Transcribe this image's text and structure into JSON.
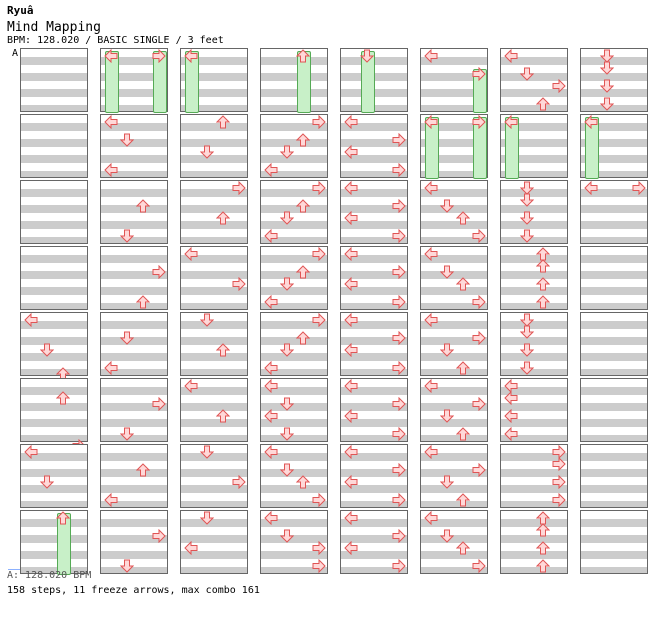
{
  "header": {
    "artist": "Ryuâ",
    "title": "Mind Mapping",
    "meta": "BPM: 128.020 / BASIC SINGLE / 3 feet",
    "marker": "A"
  },
  "footer": {
    "bpm": "A: 128.020 BPM",
    "stats": "158 steps, 11 freeze arrows, max combo 161"
  },
  "colors": {
    "arrow_fill": "#ffd8d8",
    "arrow_stroke": "#e05555",
    "freeze_fill": "#c8f0c8",
    "freeze_stroke": "#55aa55",
    "stripe": "#cccccc"
  },
  "chart": {
    "columns": [
      {
        "measures": [
          {
            "notes": []
          },
          {
            "notes": []
          },
          {
            "notes": []
          },
          {
            "notes": []
          },
          {
            "notes": [
              {
                "dir": "L",
                "row": 0
              },
              {
                "dir": "D",
                "row": 5
              },
              {
                "dir": "U",
                "row": 9
              },
              {
                "dir": "R",
                "row": 12
              }
            ]
          },
          {
            "notes": [
              {
                "dir": "U",
                "row": 2
              },
              {
                "dir": "R",
                "row": 10
              }
            ]
          },
          {
            "notes": [
              {
                "dir": "L",
                "row": 0
              },
              {
                "dir": "D",
                "row": 5
              }
            ]
          },
          {
            "notes": [
              {
                "dir": "U",
                "row": 0,
                "freeze": true
              }
            ]
          }
        ]
      },
      {
        "measures": [
          {
            "notes": [
              {
                "dir": "L",
                "row": 0,
                "freeze": true
              },
              {
                "dir": "R",
                "row": 0,
                "freeze": true
              }
            ]
          },
          {
            "notes": [
              {
                "dir": "L",
                "row": 0
              },
              {
                "dir": "D",
                "row": 3
              },
              {
                "dir": "L",
                "row": 8
              }
            ]
          },
          {
            "notes": [
              {
                "dir": "U",
                "row": 3
              },
              {
                "dir": "D",
                "row": 8
              }
            ]
          },
          {
            "notes": [
              {
                "dir": "R",
                "row": 3
              },
              {
                "dir": "U",
                "row": 8
              }
            ]
          },
          {
            "notes": [
              {
                "dir": "D",
                "row": 3
              },
              {
                "dir": "L",
                "row": 8
              }
            ]
          },
          {
            "notes": [
              {
                "dir": "R",
                "row": 3
              },
              {
                "dir": "D",
                "row": 8
              }
            ]
          },
          {
            "notes": [
              {
                "dir": "U",
                "row": 3
              },
              {
                "dir": "L",
                "row": 8
              }
            ]
          },
          {
            "notes": [
              {
                "dir": "R",
                "row": 3
              },
              {
                "dir": "D",
                "row": 8
              }
            ]
          }
        ]
      },
      {
        "measures": [
          {
            "notes": [
              {
                "dir": "L",
                "row": 0,
                "freeze": true
              }
            ]
          },
          {
            "notes": [
              {
                "dir": "U",
                "row": 0
              },
              {
                "dir": "D",
                "row": 5
              }
            ]
          },
          {
            "notes": [
              {
                "dir": "R",
                "row": 0
              },
              {
                "dir": "U",
                "row": 5
              }
            ]
          },
          {
            "notes": [
              {
                "dir": "L",
                "row": 0
              },
              {
                "dir": "R",
                "row": 5
              }
            ]
          },
          {
            "notes": [
              {
                "dir": "D",
                "row": 0
              },
              {
                "dir": "U",
                "row": 5
              }
            ]
          },
          {
            "notes": [
              {
                "dir": "L",
                "row": 0
              },
              {
                "dir": "U",
                "row": 5
              }
            ]
          },
          {
            "notes": [
              {
                "dir": "D",
                "row": 0
              },
              {
                "dir": "R",
                "row": 5
              }
            ]
          },
          {
            "notes": [
              {
                "dir": "D",
                "row": 0
              },
              {
                "dir": "L",
                "row": 5
              }
            ]
          }
        ]
      },
      {
        "measures": [
          {
            "notes": [
              {
                "dir": "U",
                "row": 0,
                "freeze": true
              }
            ]
          },
          {
            "notes": [
              {
                "dir": "R",
                "row": 0
              },
              {
                "dir": "U",
                "row": 3
              },
              {
                "dir": "D",
                "row": 5
              },
              {
                "dir": "L",
                "row": 8
              }
            ]
          },
          {
            "notes": [
              {
                "dir": "R",
                "row": 0
              },
              {
                "dir": "U",
                "row": 3
              },
              {
                "dir": "D",
                "row": 5
              },
              {
                "dir": "L",
                "row": 8
              }
            ]
          },
          {
            "notes": [
              {
                "dir": "R",
                "row": 0
              },
              {
                "dir": "U",
                "row": 3
              },
              {
                "dir": "D",
                "row": 5
              },
              {
                "dir": "L",
                "row": 8
              }
            ]
          },
          {
            "notes": [
              {
                "dir": "R",
                "row": 0
              },
              {
                "dir": "U",
                "row": 3
              },
              {
                "dir": "D",
                "row": 5
              },
              {
                "dir": "L",
                "row": 8
              }
            ]
          },
          {
            "notes": [
              {
                "dir": "L",
                "row": 0
              },
              {
                "dir": "D",
                "row": 3
              },
              {
                "dir": "L",
                "row": 5
              },
              {
                "dir": "D",
                "row": 8
              }
            ]
          },
          {
            "notes": [
              {
                "dir": "L",
                "row": 0
              },
              {
                "dir": "D",
                "row": 3
              },
              {
                "dir": "U",
                "row": 5
              },
              {
                "dir": "R",
                "row": 8
              }
            ]
          },
          {
            "notes": [
              {
                "dir": "L",
                "row": 0
              },
              {
                "dir": "D",
                "row": 3
              },
              {
                "dir": "R",
                "row": 5
              },
              {
                "dir": "R",
                "row": 8
              }
            ]
          }
        ]
      },
      {
        "measures": [
          {
            "notes": [
              {
                "dir": "D",
                "row": 0,
                "freeze": true
              }
            ]
          },
          {
            "notes": [
              {
                "dir": "L",
                "row": 0
              },
              {
                "dir": "R",
                "row": 3
              },
              {
                "dir": "L",
                "row": 5
              },
              {
                "dir": "R",
                "row": 8
              }
            ]
          },
          {
            "notes": [
              {
                "dir": "L",
                "row": 0
              },
              {
                "dir": "R",
                "row": 3
              },
              {
                "dir": "L",
                "row": 5
              },
              {
                "dir": "R",
                "row": 8
              }
            ]
          },
          {
            "notes": [
              {
                "dir": "L",
                "row": 0
              },
              {
                "dir": "R",
                "row": 3
              },
              {
                "dir": "L",
                "row": 5
              },
              {
                "dir": "R",
                "row": 8
              }
            ]
          },
          {
            "notes": [
              {
                "dir": "L",
                "row": 0
              },
              {
                "dir": "R",
                "row": 3
              },
              {
                "dir": "L",
                "row": 5
              },
              {
                "dir": "R",
                "row": 8
              }
            ]
          },
          {
            "notes": [
              {
                "dir": "L",
                "row": 0
              },
              {
                "dir": "R",
                "row": 3
              },
              {
                "dir": "L",
                "row": 5
              },
              {
                "dir": "R",
                "row": 8
              }
            ]
          },
          {
            "notes": [
              {
                "dir": "L",
                "row": 0
              },
              {
                "dir": "R",
                "row": 3
              },
              {
                "dir": "L",
                "row": 5
              },
              {
                "dir": "R",
                "row": 8
              }
            ]
          },
          {
            "notes": [
              {
                "dir": "L",
                "row": 0
              },
              {
                "dir": "R",
                "row": 3
              },
              {
                "dir": "L",
                "row": 5
              },
              {
                "dir": "R",
                "row": 8
              }
            ]
          }
        ]
      },
      {
        "measures": [
          {
            "notes": [
              {
                "dir": "L",
                "row": 0
              },
              {
                "dir": "R",
                "row": 3,
                "freeze": true
              }
            ]
          },
          {
            "notes": [
              {
                "dir": "L",
                "row": 0,
                "freeze": true
              },
              {
                "dir": "R",
                "row": 0,
                "freeze": true
              }
            ]
          },
          {
            "notes": [
              {
                "dir": "L",
                "row": 0
              },
              {
                "dir": "D",
                "row": 3
              },
              {
                "dir": "U",
                "row": 5
              },
              {
                "dir": "R",
                "row": 8
              }
            ]
          },
          {
            "notes": [
              {
                "dir": "L",
                "row": 0
              },
              {
                "dir": "D",
                "row": 3
              },
              {
                "dir": "U",
                "row": 5
              },
              {
                "dir": "R",
                "row": 8
              }
            ]
          },
          {
            "notes": [
              {
                "dir": "L",
                "row": 0
              },
              {
                "dir": "R",
                "row": 3
              },
              {
                "dir": "D",
                "row": 5
              },
              {
                "dir": "U",
                "row": 8
              }
            ]
          },
          {
            "notes": [
              {
                "dir": "L",
                "row": 0
              },
              {
                "dir": "R",
                "row": 3
              },
              {
                "dir": "D",
                "row": 5
              },
              {
                "dir": "U",
                "row": 8
              }
            ]
          },
          {
            "notes": [
              {
                "dir": "L",
                "row": 0
              },
              {
                "dir": "R",
                "row": 3
              },
              {
                "dir": "D",
                "row": 5
              },
              {
                "dir": "U",
                "row": 8
              }
            ]
          },
          {
            "notes": [
              {
                "dir": "L",
                "row": 0
              },
              {
                "dir": "D",
                "row": 3
              },
              {
                "dir": "U",
                "row": 5
              },
              {
                "dir": "R",
                "row": 8
              }
            ]
          }
        ]
      },
      {
        "measures": [
          {
            "notes": [
              {
                "dir": "L",
                "row": 0
              },
              {
                "dir": "D",
                "row": 3
              },
              {
                "dir": "R",
                "row": 5
              },
              {
                "dir": "U",
                "row": 8
              }
            ]
          },
          {
            "notes": [
              {
                "dir": "L",
                "row": 0,
                "freeze": true
              }
            ]
          },
          {
            "notes": [
              {
                "dir": "D",
                "row": 0
              },
              {
                "dir": "D",
                "row": 2
              },
              {
                "dir": "D",
                "row": 5
              },
              {
                "dir": "D",
                "row": 8
              }
            ]
          },
          {
            "notes": [
              {
                "dir": "U",
                "row": 0
              },
              {
                "dir": "U",
                "row": 2
              },
              {
                "dir": "U",
                "row": 5
              },
              {
                "dir": "U",
                "row": 8
              }
            ]
          },
          {
            "notes": [
              {
                "dir": "D",
                "row": 0
              },
              {
                "dir": "D",
                "row": 2
              },
              {
                "dir": "D",
                "row": 5
              },
              {
                "dir": "D",
                "row": 8
              }
            ]
          },
          {
            "notes": [
              {
                "dir": "L",
                "row": 0
              },
              {
                "dir": "L",
                "row": 2
              },
              {
                "dir": "L",
                "row": 5
              },
              {
                "dir": "L",
                "row": 8
              }
            ]
          },
          {
            "notes": [
              {
                "dir": "R",
                "row": 0
              },
              {
                "dir": "R",
                "row": 2
              },
              {
                "dir": "R",
                "row": 5
              },
              {
                "dir": "R",
                "row": 8
              }
            ]
          },
          {
            "notes": [
              {
                "dir": "U",
                "row": 0
              },
              {
                "dir": "U",
                "row": 2
              },
              {
                "dir": "U",
                "row": 5
              },
              {
                "dir": "U",
                "row": 8
              }
            ]
          }
        ]
      },
      {
        "measures": [
          {
            "notes": [
              {
                "dir": "D",
                "row": 0
              },
              {
                "dir": "D",
                "row": 2
              },
              {
                "dir": "D",
                "row": 5
              },
              {
                "dir": "D",
                "row": 8
              }
            ]
          },
          {
            "notes": [
              {
                "dir": "L",
                "row": 0,
                "freeze": true
              }
            ]
          },
          {
            "notes": [
              {
                "dir": "L",
                "row": 0
              },
              {
                "dir": "R",
                "row": 0
              }
            ]
          },
          {
            "notes": []
          },
          {
            "notes": []
          },
          {
            "notes": []
          },
          {
            "notes": []
          },
          {
            "notes": []
          }
        ]
      }
    ]
  }
}
